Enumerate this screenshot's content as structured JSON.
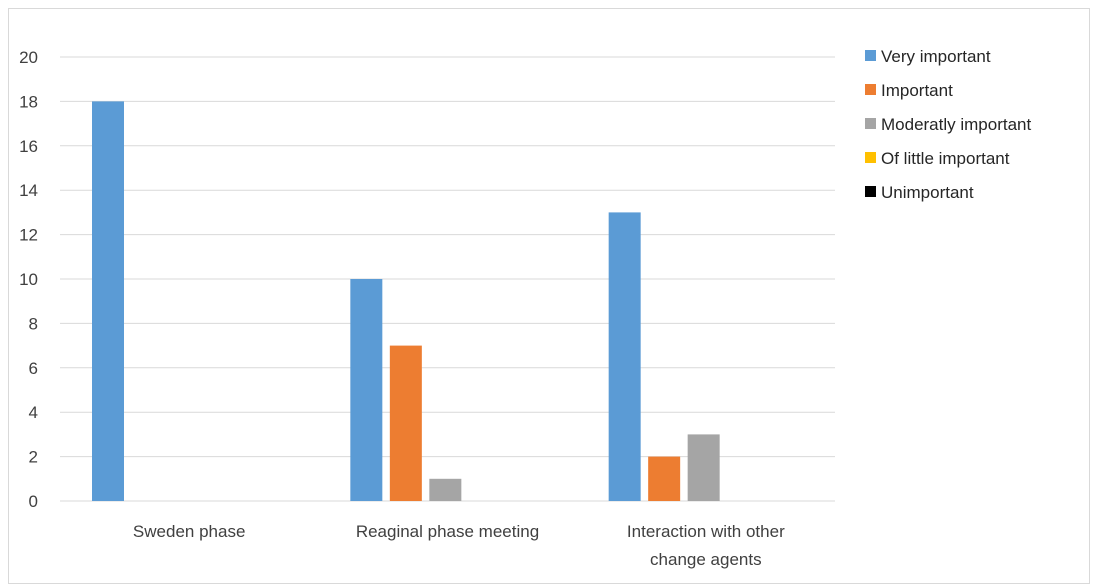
{
  "chart_data": {
    "type": "bar",
    "categories": [
      [
        "Sweden phase"
      ],
      [
        "Reaginal phase meeting"
      ],
      [
        "Interaction with other",
        "change agents"
      ]
    ],
    "series": [
      {
        "name": "Very important",
        "color": "#5B9BD5",
        "values": [
          18,
          10,
          13
        ]
      },
      {
        "name": "Important",
        "color": "#ED7D31",
        "values": [
          0,
          7,
          2
        ]
      },
      {
        "name": "Moderatly important",
        "color": "#A5A5A5",
        "values": [
          0,
          1,
          3
        ]
      },
      {
        "name": "Of little important",
        "color": "#FFC000",
        "values": [
          0,
          0,
          0
        ]
      },
      {
        "name": "Unimportant",
        "color": "#000000",
        "values": [
          0,
          0,
          0
        ]
      }
    ],
    "ylim": [
      0,
      20
    ],
    "yticks": [
      0,
      2,
      4,
      6,
      8,
      10,
      12,
      14,
      16,
      18,
      20
    ],
    "grid": true,
    "legend_position": "right"
  }
}
